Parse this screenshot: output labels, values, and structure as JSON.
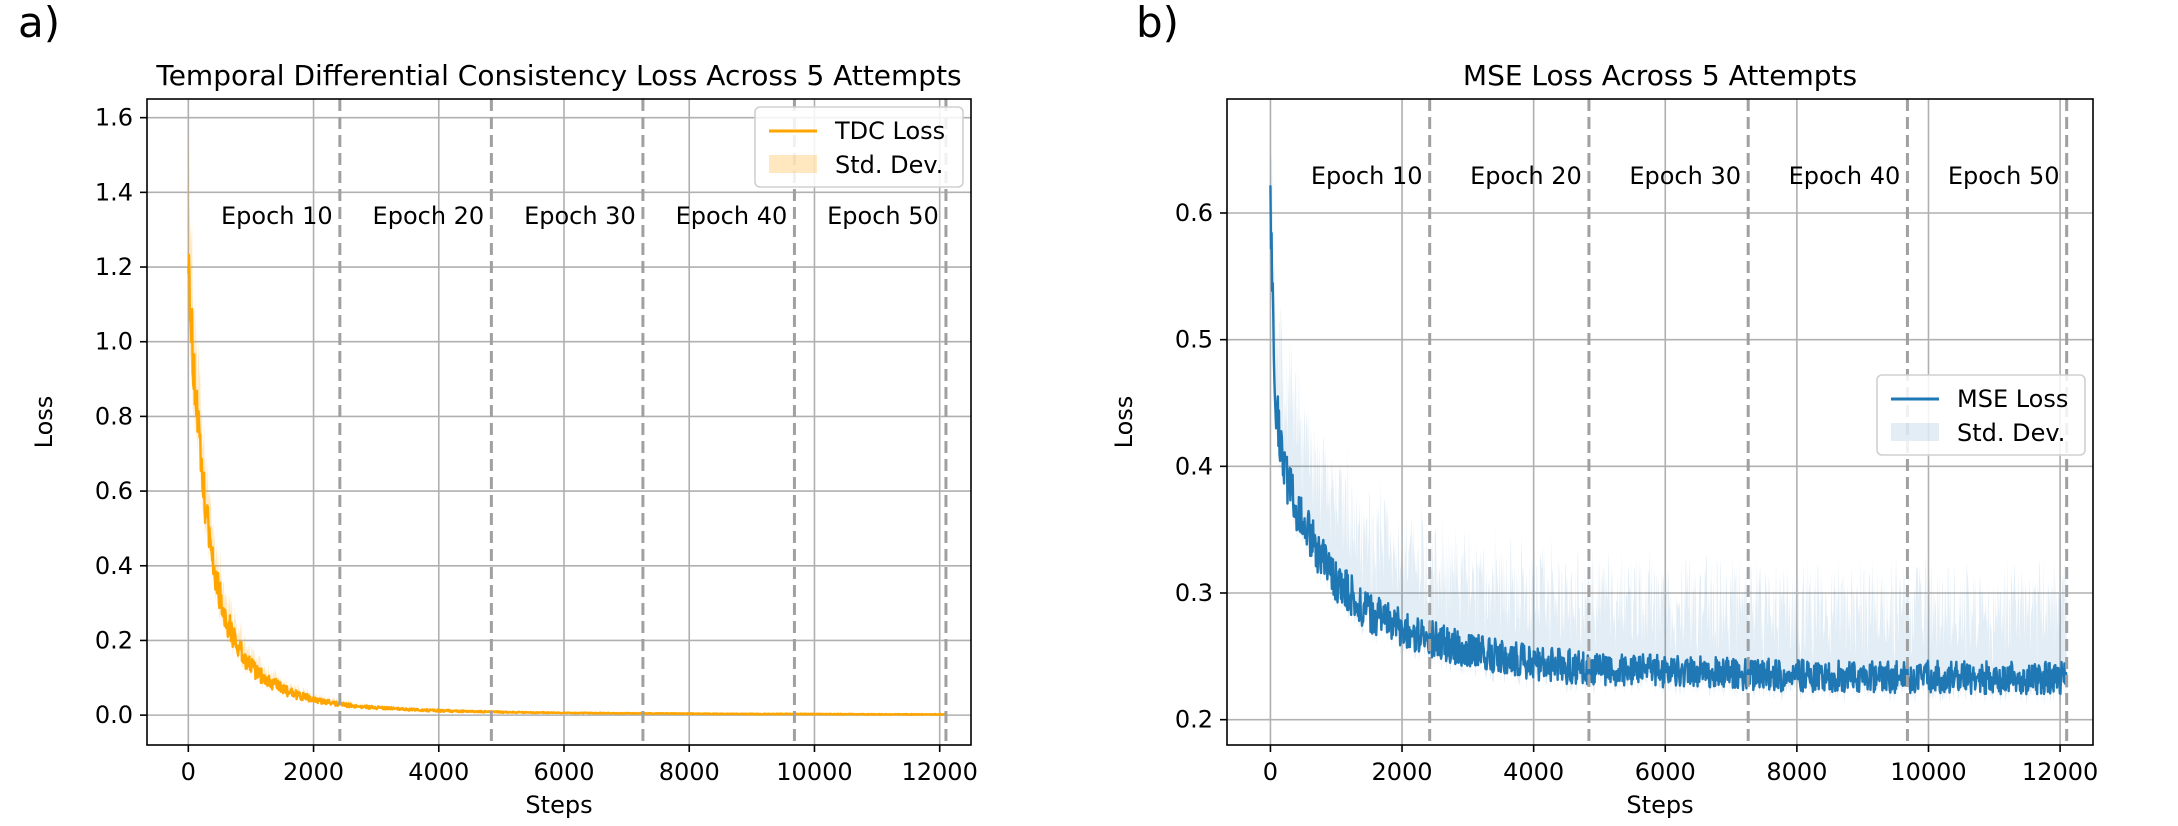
{
  "figure": {
    "panels": [
      {
        "panel_label": "a)",
        "chart_data": {
          "type": "line",
          "title": "Temporal Differential Consistency Loss Across 5 Attempts",
          "xlabel": "Steps",
          "ylabel": "Loss",
          "xlim": [
            -660,
            12500
          ],
          "ylim": [
            -0.08,
            1.65
          ],
          "xticks": [
            0,
            2000,
            4000,
            6000,
            8000,
            10000,
            12000
          ],
          "xtick_labels": [
            "0",
            "2000",
            "4000",
            "6000",
            "8000",
            "10000",
            "12000"
          ],
          "yticks": [
            0.0,
            0.2,
            0.4,
            0.6,
            0.8,
            1.0,
            1.2,
            1.4,
            1.6
          ],
          "ytick_labels": [
            "0.0",
            "0.2",
            "0.4",
            "0.6",
            "0.8",
            "1.0",
            "1.2",
            "1.4",
            "1.6"
          ],
          "grid": true,
          "legend_position": "top-right",
          "color": "#ffa500",
          "band_color": "#ffa500",
          "series": [
            {
              "name": "TDC Loss",
              "x": [
                0,
                50,
                100,
                150,
                200,
                300,
                400,
                500,
                600,
                800,
                1000,
                1200,
                1500,
                1800,
                2100,
                2500,
                3000,
                3500,
                4000,
                5000,
                6000,
                7000,
                8000,
                9000,
                10000,
                11000,
                12100
              ],
              "y": [
                1.3,
                1.02,
                0.9,
                0.78,
                0.66,
                0.52,
                0.41,
                0.32,
                0.26,
                0.18,
                0.13,
                0.1,
                0.07,
                0.05,
                0.037,
                0.027,
                0.02,
                0.015,
                0.012,
                0.008,
                0.006,
                0.005,
                0.004,
                0.003,
                0.003,
                0.002,
                0.002
              ],
              "noise": [
                0.12,
                0.1,
                0.09,
                0.08,
                0.07,
                0.06,
                0.05,
                0.045,
                0.04,
                0.03,
                0.025,
                0.02,
                0.015,
                0.012,
                0.008,
                0.006,
                0.004,
                0.003,
                0.003,
                0.002,
                0.001,
                0.001,
                0.001,
                0.001,
                0.001,
                0.001,
                0.001
              ]
            },
            {
              "name": "Std. Dev.",
              "x": [
                0,
                50,
                100,
                150,
                200,
                300,
                400,
                500,
                600,
                800,
                1000,
                1200,
                1500,
                1800,
                2100,
                2500,
                3000,
                3500,
                4000,
                5000,
                6000,
                7000,
                8000,
                9000,
                10000,
                11000,
                12100
              ],
              "y": [
                0.26,
                0.22,
                0.19,
                0.16,
                0.14,
                0.11,
                0.09,
                0.07,
                0.06,
                0.045,
                0.035,
                0.028,
                0.02,
                0.015,
                0.011,
                0.008,
                0.006,
                0.005,
                0.004,
                0.003,
                0.002,
                0.002,
                0.001,
                0.001,
                0.001,
                0.001,
                0.001
              ]
            }
          ],
          "epoch_markers": [
            {
              "x": 2420,
              "label": "Epoch 10"
            },
            {
              "x": 4840,
              "label": "Epoch 20"
            },
            {
              "x": 7260,
              "label": "Epoch 30"
            },
            {
              "x": 9680,
              "label": "Epoch 40"
            },
            {
              "x": 12100,
              "label": "Epoch 50"
            }
          ],
          "epoch_label_y": 1.34
        }
      },
      {
        "panel_label": "b)",
        "chart_data": {
          "type": "line",
          "title": "MSE Loss Across 5 Attempts",
          "xlabel": "Steps",
          "ylabel": "Loss",
          "xlim": [
            -660,
            12500
          ],
          "ylim": [
            0.18,
            0.69
          ],
          "xticks": [
            0,
            2000,
            4000,
            6000,
            8000,
            10000,
            12000
          ],
          "xtick_labels": [
            "0",
            "2000",
            "4000",
            "6000",
            "8000",
            "10000",
            "12000"
          ],
          "yticks": [
            0.2,
            0.3,
            0.4,
            0.5,
            0.6
          ],
          "ytick_labels": [
            "0.2",
            "0.3",
            "0.4",
            "0.5",
            "0.6"
          ],
          "grid": true,
          "legend_position": "center-right",
          "color": "#1f77b4",
          "band_color": "#1f77b4",
          "series": [
            {
              "name": "MSE Loss",
              "x": [
                0,
                50,
                100,
                200,
                300,
                500,
                700,
                1000,
                1500,
                2000,
                2500,
                3000,
                3500,
                4000,
                4500,
                5000,
                6000,
                7000,
                8000,
                9000,
                10000,
                11000,
                12100
              ],
              "y": [
                0.6,
                0.5,
                0.44,
                0.4,
                0.38,
                0.355,
                0.335,
                0.31,
                0.285,
                0.272,
                0.262,
                0.255,
                0.25,
                0.245,
                0.242,
                0.24,
                0.238,
                0.236,
                0.235,
                0.234,
                0.234,
                0.233,
                0.233
              ],
              "noise": [
                0.04,
                0.03,
                0.025,
                0.02,
                0.02,
                0.018,
                0.018,
                0.017,
                0.016,
                0.015,
                0.015,
                0.014,
                0.014,
                0.014,
                0.014,
                0.013,
                0.013,
                0.013,
                0.013,
                0.013,
                0.013,
                0.013,
                0.013
              ]
            },
            {
              "name": "Std. Dev.",
              "x": [
                0,
                50,
                100,
                200,
                300,
                500,
                700,
                1000,
                1500,
                2000,
                2500,
                3000,
                3500,
                4000,
                4500,
                5000,
                6000,
                7000,
                8000,
                9000,
                10000,
                11000,
                12100
              ],
              "y": [
                0.05,
                0.055,
                0.06,
                0.06,
                0.06,
                0.058,
                0.055,
                0.052,
                0.05,
                0.048,
                0.047,
                0.046,
                0.046,
                0.045,
                0.045,
                0.045,
                0.045,
                0.045,
                0.045,
                0.045,
                0.045,
                0.045,
                0.045
              ]
            }
          ],
          "epoch_markers": [
            {
              "x": 2420,
              "label": "Epoch 10"
            },
            {
              "x": 4840,
              "label": "Epoch 20"
            },
            {
              "x": 7260,
              "label": "Epoch 30"
            },
            {
              "x": 9680,
              "label": "Epoch 40"
            },
            {
              "x": 12100,
              "label": "Epoch 50"
            }
          ],
          "epoch_label_y": 0.63
        }
      }
    ]
  }
}
